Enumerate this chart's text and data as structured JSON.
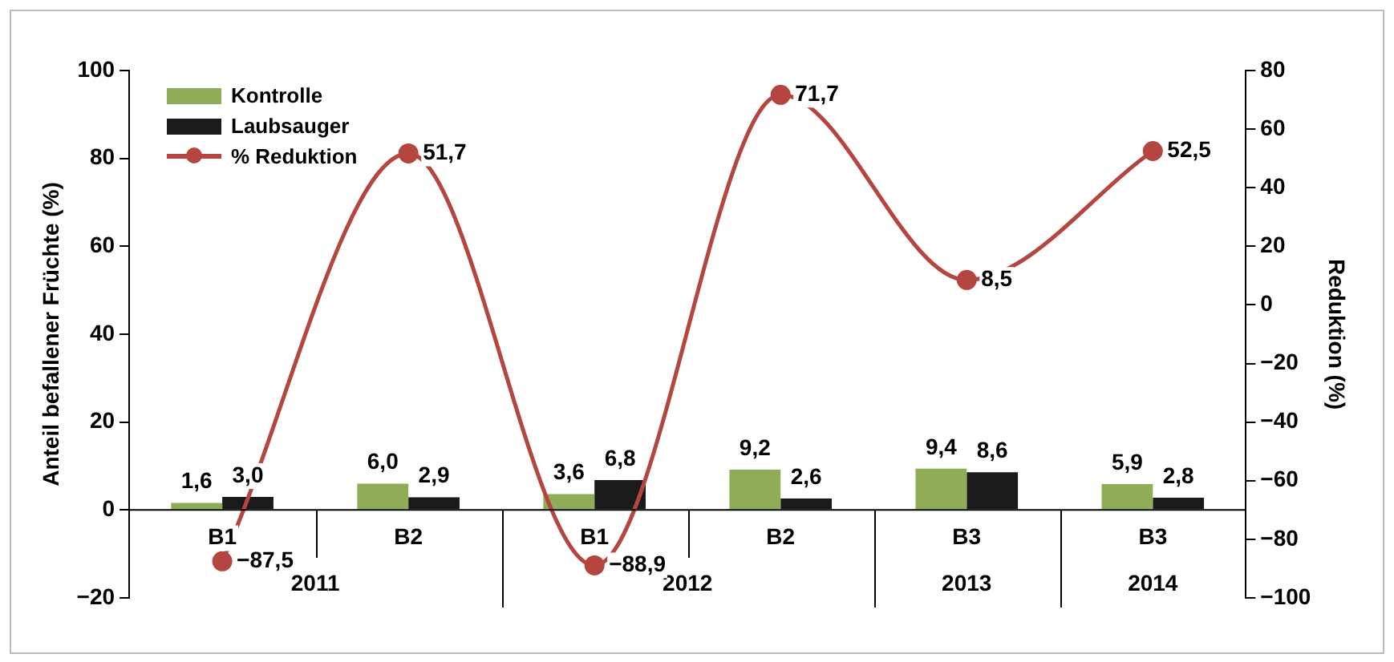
{
  "chart_data": {
    "type": "bar",
    "categories": [
      "B1",
      "B2",
      "B1",
      "B2",
      "B3",
      "B3"
    ],
    "ylabel": "Anteil befallener Früchte (%)",
    "y2label": "Reduktion (%)",
    "ylim": [
      -20,
      100
    ],
    "yticks": [
      {
        "value": -20,
        "label": "−20"
      },
      0,
      20,
      40,
      60,
      80,
      100
    ],
    "y2lim": [
      -100,
      80
    ],
    "y2ticks": [
      {
        "value": -100,
        "label": "−100"
      },
      {
        "value": -80,
        "label": "−80"
      },
      {
        "value": -60,
        "label": "−60"
      },
      {
        "value": -40,
        "label": "−40"
      },
      {
        "value": -20,
        "label": "−20"
      },
      0,
      20,
      40,
      60,
      80
    ],
    "series": [
      {
        "name": "Kontrolle",
        "color": "#8fac56",
        "values": [
          1.6,
          6.0,
          3.6,
          9.2,
          9.4,
          5.9
        ],
        "value_labels": [
          "1,6",
          "6,0",
          "3,6",
          "9,2",
          "9,4",
          "5,9"
        ]
      },
      {
        "name": "Laubsauger",
        "color": "#1a1a1a",
        "values": [
          3.0,
          2.9,
          6.8,
          2.6,
          8.6,
          2.8
        ],
        "value_labels": [
          "3,0",
          "2,9",
          "6,8",
          "2,6",
          "8,6",
          "2,8"
        ]
      },
      {
        "name": "% Reduktion",
        "type": "line",
        "axis": "y2",
        "color": "#b5453f",
        "marker": "circle",
        "values": [
          -87.5,
          51.7,
          -88.9,
          71.7,
          8.5,
          52.5
        ],
        "value_labels": [
          "−87,5",
          "51,7",
          "−88,9",
          "71,7",
          "8,5",
          "52,5"
        ]
      }
    ],
    "annotations": [
      "2011",
      "2012",
      "2013",
      "2014"
    ],
    "legend": "top left",
    "grid": false
  }
}
